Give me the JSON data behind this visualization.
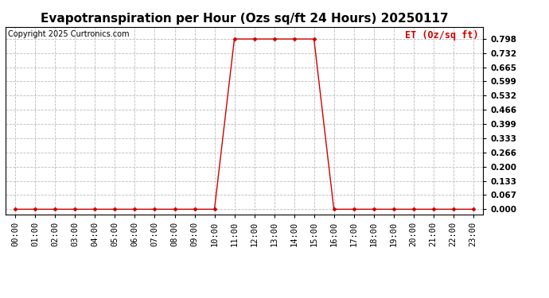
{
  "title": "Evapotranspiration per Hour (Ozs sq/ft 24 Hours) 20250117",
  "copyright": "Copyright 2025 Curtronics.com",
  "legend_label": "ET (Oz/sq ft)",
  "line_color": "#cc0000",
  "marker_color": "#cc0000",
  "background_color": "#ffffff",
  "grid_color": "#bbbbbb",
  "hours": [
    0,
    1,
    2,
    3,
    4,
    5,
    6,
    7,
    8,
    9,
    10,
    11,
    12,
    13,
    14,
    15,
    16,
    17,
    18,
    19,
    20,
    21,
    22,
    23
  ],
  "values": [
    0.0,
    0.0,
    0.0,
    0.0,
    0.0,
    0.0,
    0.0,
    0.0,
    0.0,
    0.0,
    0.0,
    0.798,
    0.798,
    0.798,
    0.798,
    0.798,
    0.0,
    0.0,
    0.0,
    0.0,
    0.0,
    0.0,
    0.0,
    0.0
  ],
  "yticks": [
    0.0,
    0.067,
    0.133,
    0.2,
    0.266,
    0.333,
    0.399,
    0.466,
    0.532,
    0.599,
    0.665,
    0.732,
    0.798
  ],
  "ylim": [
    -0.025,
    0.855
  ],
  "xlim": [
    -0.5,
    23.5
  ],
  "title_fontsize": 11,
  "copyright_fontsize": 7,
  "legend_fontsize": 8.5,
  "tick_fontsize": 7.5,
  "figwidth": 6.9,
  "figheight": 3.75,
  "dpi": 100
}
